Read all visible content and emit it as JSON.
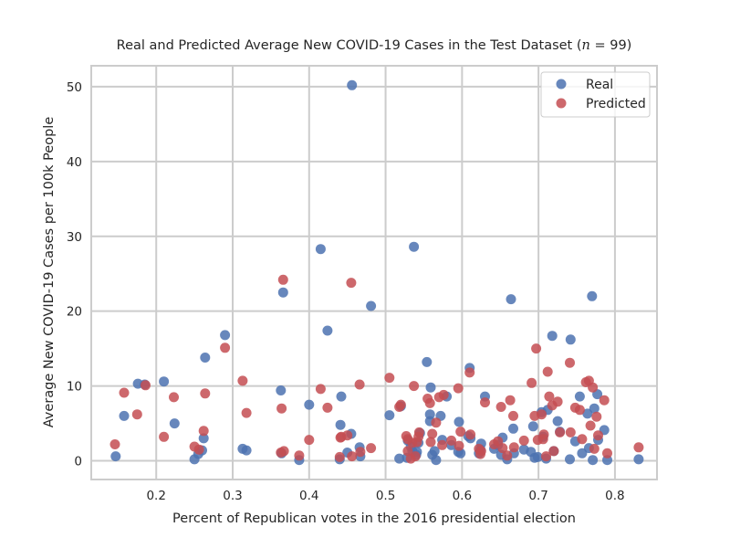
{
  "chart_data": {
    "type": "scatter",
    "title_prefix": "Real and Predicted Average New COVID-19 Cases in the Test Dataset (",
    "title_var": "n",
    "title_suffix": "  = 99)",
    "xlabel": "Percent of Republican votes in the 2016 presidential election",
    "ylabel": "Average New COVID-19 Cases per 100k People",
    "xlim": [
      0.115,
      0.855
    ],
    "ylim": [
      -2.5,
      52.8
    ],
    "xticks": [
      0.1,
      0.2,
      0.3,
      0.4,
      0.5,
      0.6,
      0.7,
      0.8
    ],
    "xtick_labels": [
      "0.1",
      "0.2",
      "0.3",
      "0.4",
      "0.5",
      "0.6",
      "0.7",
      "0.8"
    ],
    "yticks": [
      0,
      10,
      20,
      30,
      40,
      50
    ],
    "ytick_labels": [
      "0",
      "10",
      "20",
      "30",
      "40",
      "50"
    ],
    "grid": true,
    "legend_position": "top-right",
    "series": [
      {
        "name": "Real",
        "color": "#4c72b0",
        "points": [
          [
            0.147,
            0.6
          ],
          [
            0.158,
            6.0
          ],
          [
            0.176,
            10.3
          ],
          [
            0.185,
            10.2
          ],
          [
            0.21,
            10.6
          ],
          [
            0.224,
            5.0
          ],
          [
            0.25,
            0.2
          ],
          [
            0.255,
            0.9
          ],
          [
            0.262,
            3.0
          ],
          [
            0.264,
            13.8
          ],
          [
            0.29,
            16.8
          ],
          [
            0.313,
            1.6
          ],
          [
            0.318,
            1.4
          ],
          [
            0.363,
            9.4
          ],
          [
            0.364,
            1.0
          ],
          [
            0.366,
            22.5
          ],
          [
            0.387,
            0.1
          ],
          [
            0.4,
            7.5
          ],
          [
            0.415,
            28.3
          ],
          [
            0.424,
            17.4
          ],
          [
            0.44,
            0.2
          ],
          [
            0.441,
            4.8
          ],
          [
            0.442,
            8.6
          ],
          [
            0.455,
            3.6
          ],
          [
            0.456,
            50.2
          ],
          [
            0.466,
            1.8
          ],
          [
            0.467,
            0.6
          ],
          [
            0.481,
            20.7
          ],
          [
            0.505,
            6.1
          ],
          [
            0.518,
            0.3
          ],
          [
            0.52,
            7.3
          ],
          [
            0.528,
            0.4
          ],
          [
            0.535,
            1.3
          ],
          [
            0.537,
            28.6
          ],
          [
            0.54,
            0.8
          ],
          [
            0.541,
            1.2
          ],
          [
            0.545,
            3.7
          ],
          [
            0.554,
            13.2
          ],
          [
            0.558,
            5.3
          ],
          [
            0.558,
            6.2
          ],
          [
            0.559,
            9.8
          ],
          [
            0.561,
            0.8
          ],
          [
            0.564,
            1.3
          ],
          [
            0.566,
            0.1
          ],
          [
            0.572,
            6.0
          ],
          [
            0.58,
            8.6
          ],
          [
            0.595,
            1.2
          ],
          [
            0.596,
            5.2
          ],
          [
            0.598,
            1.0
          ],
          [
            0.61,
            12.4
          ],
          [
            0.611,
            3.0
          ],
          [
            0.624,
            1.5
          ],
          [
            0.625,
            2.3
          ],
          [
            0.63,
            8.6
          ],
          [
            0.642,
            1.6
          ],
          [
            0.647,
            2.1
          ],
          [
            0.651,
            0.8
          ],
          [
            0.653,
            3.1
          ],
          [
            0.659,
            0.2
          ],
          [
            0.664,
            21.6
          ],
          [
            0.667,
            4.3
          ],
          [
            0.668,
            1.0
          ],
          [
            0.681,
            1.5
          ],
          [
            0.69,
            1.2
          ],
          [
            0.693,
            4.6
          ],
          [
            0.695,
            0.4
          ],
          [
            0.699,
            0.5
          ],
          [
            0.704,
            6.5
          ],
          [
            0.71,
            0.3
          ],
          [
            0.712,
            6.8
          ],
          [
            0.718,
            16.7
          ],
          [
            0.72,
            1.3
          ],
          [
            0.725,
            5.3
          ],
          [
            0.741,
            0.2
          ],
          [
            0.742,
            16.2
          ],
          [
            0.748,
            2.6
          ],
          [
            0.754,
            8.6
          ],
          [
            0.757,
            1.0
          ],
          [
            0.764,
            6.3
          ],
          [
            0.766,
            1.7
          ],
          [
            0.77,
            22.0
          ],
          [
            0.771,
            0.1
          ],
          [
            0.773,
            7.0
          ],
          [
            0.777,
            8.9
          ],
          [
            0.778,
            2.8
          ],
          [
            0.786,
            4.1
          ],
          [
            0.79,
            0.1
          ],
          [
            0.831,
            0.2
          ],
          [
            0.728,
            3.9
          ],
          [
            0.706,
            3.2
          ],
          [
            0.622,
            1.0
          ],
          [
            0.608,
            3.3
          ],
          [
            0.586,
            2.1
          ],
          [
            0.574,
            2.8
          ],
          [
            0.543,
            2.4
          ],
          [
            0.533,
            1.9
          ],
          [
            0.529,
            2.7
          ],
          [
            0.45,
            1.1
          ],
          [
            0.26,
            1.4
          ]
        ]
      },
      {
        "name": "Predicted",
        "color": "#c44e52",
        "points": [
          [
            0.146,
            2.2
          ],
          [
            0.158,
            9.1
          ],
          [
            0.175,
            6.2
          ],
          [
            0.186,
            10.1
          ],
          [
            0.21,
            3.2
          ],
          [
            0.223,
            8.5
          ],
          [
            0.25,
            1.9
          ],
          [
            0.256,
            1.5
          ],
          [
            0.262,
            4.0
          ],
          [
            0.264,
            9.0
          ],
          [
            0.29,
            15.1
          ],
          [
            0.313,
            10.7
          ],
          [
            0.318,
            6.4
          ],
          [
            0.363,
            1.1
          ],
          [
            0.364,
            7.0
          ],
          [
            0.366,
            24.2
          ],
          [
            0.367,
            1.3
          ],
          [
            0.387,
            0.7
          ],
          [
            0.4,
            2.8
          ],
          [
            0.415,
            9.6
          ],
          [
            0.424,
            7.1
          ],
          [
            0.44,
            0.5
          ],
          [
            0.441,
            3.1
          ],
          [
            0.442,
            3.2
          ],
          [
            0.455,
            23.8
          ],
          [
            0.456,
            0.6
          ],
          [
            0.466,
            10.2
          ],
          [
            0.467,
            1.2
          ],
          [
            0.481,
            1.7
          ],
          [
            0.505,
            11.1
          ],
          [
            0.518,
            7.2
          ],
          [
            0.52,
            7.5
          ],
          [
            0.527,
            3.3
          ],
          [
            0.529,
            1.3
          ],
          [
            0.533,
            0.3
          ],
          [
            0.535,
            2.4
          ],
          [
            0.537,
            10.0
          ],
          [
            0.539,
            0.6
          ],
          [
            0.541,
            2.5
          ],
          [
            0.543,
            3.2
          ],
          [
            0.544,
            3.8
          ],
          [
            0.555,
            8.3
          ],
          [
            0.558,
            7.7
          ],
          [
            0.559,
            2.5
          ],
          [
            0.561,
            3.6
          ],
          [
            0.566,
            5.1
          ],
          [
            0.57,
            8.5
          ],
          [
            0.576,
            8.8
          ],
          [
            0.595,
            9.7
          ],
          [
            0.596,
            2.0
          ],
          [
            0.598,
            3.9
          ],
          [
            0.61,
            11.8
          ],
          [
            0.611,
            3.5
          ],
          [
            0.624,
            0.9
          ],
          [
            0.625,
            1.3
          ],
          [
            0.63,
            7.8
          ],
          [
            0.642,
            2.2
          ],
          [
            0.647,
            2.6
          ],
          [
            0.651,
            7.2
          ],
          [
            0.653,
            1.7
          ],
          [
            0.659,
            0.7
          ],
          [
            0.663,
            8.1
          ],
          [
            0.667,
            6.0
          ],
          [
            0.668,
            1.8
          ],
          [
            0.681,
            2.7
          ],
          [
            0.691,
            10.4
          ],
          [
            0.695,
            6.0
          ],
          [
            0.697,
            15.0
          ],
          [
            0.699,
            2.8
          ],
          [
            0.704,
            6.2
          ],
          [
            0.707,
            3.5
          ],
          [
            0.71,
            0.6
          ],
          [
            0.712,
            11.9
          ],
          [
            0.714,
            8.6
          ],
          [
            0.718,
            7.4
          ],
          [
            0.72,
            1.3
          ],
          [
            0.725,
            7.9
          ],
          [
            0.741,
            13.1
          ],
          [
            0.742,
            3.8
          ],
          [
            0.748,
            7.1
          ],
          [
            0.754,
            6.8
          ],
          [
            0.757,
            2.9
          ],
          [
            0.762,
            10.5
          ],
          [
            0.766,
            10.7
          ],
          [
            0.768,
            4.7
          ],
          [
            0.771,
            9.8
          ],
          [
            0.773,
            1.6
          ],
          [
            0.776,
            5.9
          ],
          [
            0.778,
            3.4
          ],
          [
            0.786,
            8.1
          ],
          [
            0.79,
            1.0
          ],
          [
            0.831,
            1.8
          ],
          [
            0.728,
            3.8
          ],
          [
            0.706,
            2.9
          ],
          [
            0.622,
            1.6
          ],
          [
            0.586,
            2.7
          ],
          [
            0.574,
            2.1
          ],
          [
            0.529,
            2.9
          ],
          [
            0.45,
            3.4
          ]
        ]
      }
    ]
  }
}
